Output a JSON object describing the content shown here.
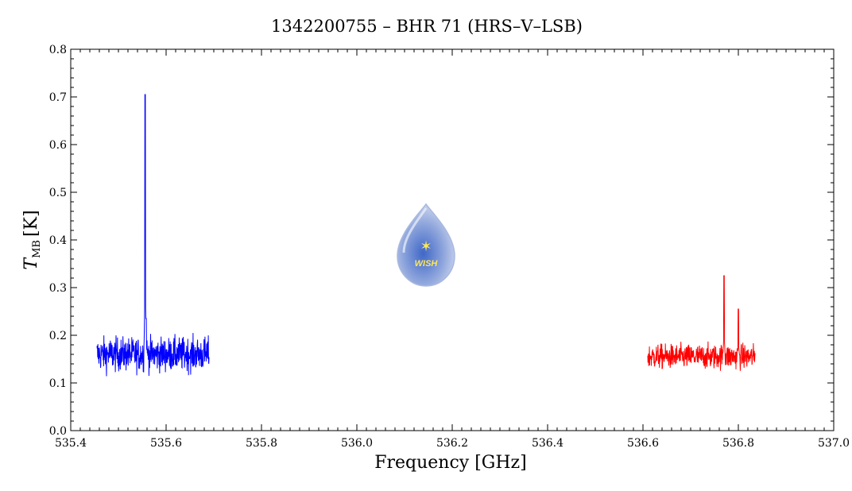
{
  "chart_data": {
    "type": "line",
    "title": "1342200755 – BHR 71 (HRS–V–LSB)",
    "xlabel": "Frequency [GHz]",
    "ylabel_main": "T",
    "ylabel_sub": "MB",
    "ylabel_unit": "[K]",
    "xlim": [
      535.4,
      537.0
    ],
    "ylim": [
      0.0,
      0.8
    ],
    "x_ticks": [
      "535.4",
      "535.6",
      "535.8",
      "536.0",
      "536.2",
      "536.4",
      "536.6",
      "536.8",
      "537.0"
    ],
    "y_ticks": [
      "0.0",
      "0.1",
      "0.2",
      "0.3",
      "0.4",
      "0.5",
      "0.6",
      "0.7",
      "0.8"
    ],
    "grid": false,
    "series": [
      {
        "color": "#0000ff",
        "x_range": [
          535.455,
          535.69
        ],
        "baseline": 0.16,
        "noise_amplitude": 0.03,
        "peaks": [
          {
            "x": 535.556,
            "y": 0.705
          },
          {
            "x": 535.558,
            "y": 0.235
          }
        ]
      },
      {
        "color": "#ff0000",
        "x_range": [
          536.61,
          536.835
        ],
        "baseline": 0.155,
        "noise_amplitude": 0.022,
        "peaks": [
          {
            "x": 536.77,
            "y": 0.325
          },
          {
            "x": 536.8,
            "y": 0.255
          }
        ]
      }
    ]
  },
  "logo": {
    "text": "WISH"
  }
}
